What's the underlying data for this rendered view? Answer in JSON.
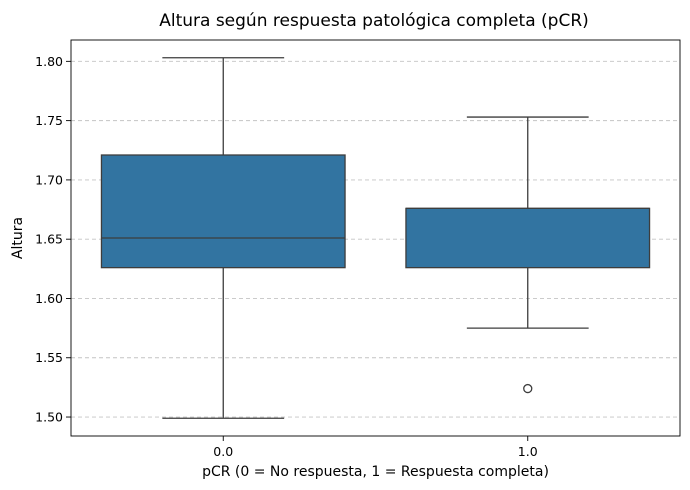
{
  "chart_data": {
    "type": "box",
    "title": "Altura según respuesta patológica completa (pCR)",
    "xlabel": "pCR (0 = No respuesta, 1 = Respuesta completa)",
    "ylabel": "Altura",
    "ylim": [
      1.484,
      1.818
    ],
    "yticks": [
      "1.50",
      "1.55",
      "1.60",
      "1.65",
      "1.70",
      "1.75",
      "1.80"
    ],
    "grid": "y-dashed",
    "categories": [
      "0.0",
      "1.0"
    ],
    "boxes": [
      {
        "category": "0.0",
        "whisker_low": 1.499,
        "q1": 1.626,
        "median": 1.651,
        "q3": 1.721,
        "whisker_high": 1.803,
        "outliers": []
      },
      {
        "category": "1.0",
        "whisker_low": 1.575,
        "q1": 1.626,
        "median": 1.676,
        "q3": 1.676,
        "whisker_high": 1.753,
        "outliers": [
          1.524
        ]
      }
    ],
    "box_color": "#3274a1",
    "line_color": "#3d3d3d"
  }
}
